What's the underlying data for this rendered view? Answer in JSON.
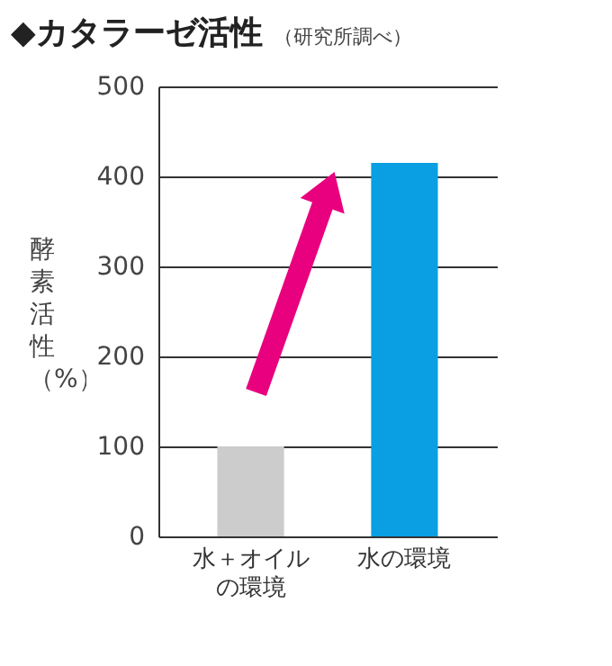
{
  "chart_data": {
    "type": "bar",
    "title": "◆カタラーゼ活性",
    "subtitle": "（研究所調べ）",
    "ylabel": "酵素活性（%）",
    "categories": [
      "水＋オイルの環境",
      "水の環境"
    ],
    "values": [
      100,
      415
    ],
    "colors": [
      "#cccccc",
      "#0a9fe3"
    ],
    "ylim": [
      0,
      500
    ],
    "yticks": [
      0,
      100,
      200,
      300,
      400,
      500
    ],
    "grid": "y"
  }
}
